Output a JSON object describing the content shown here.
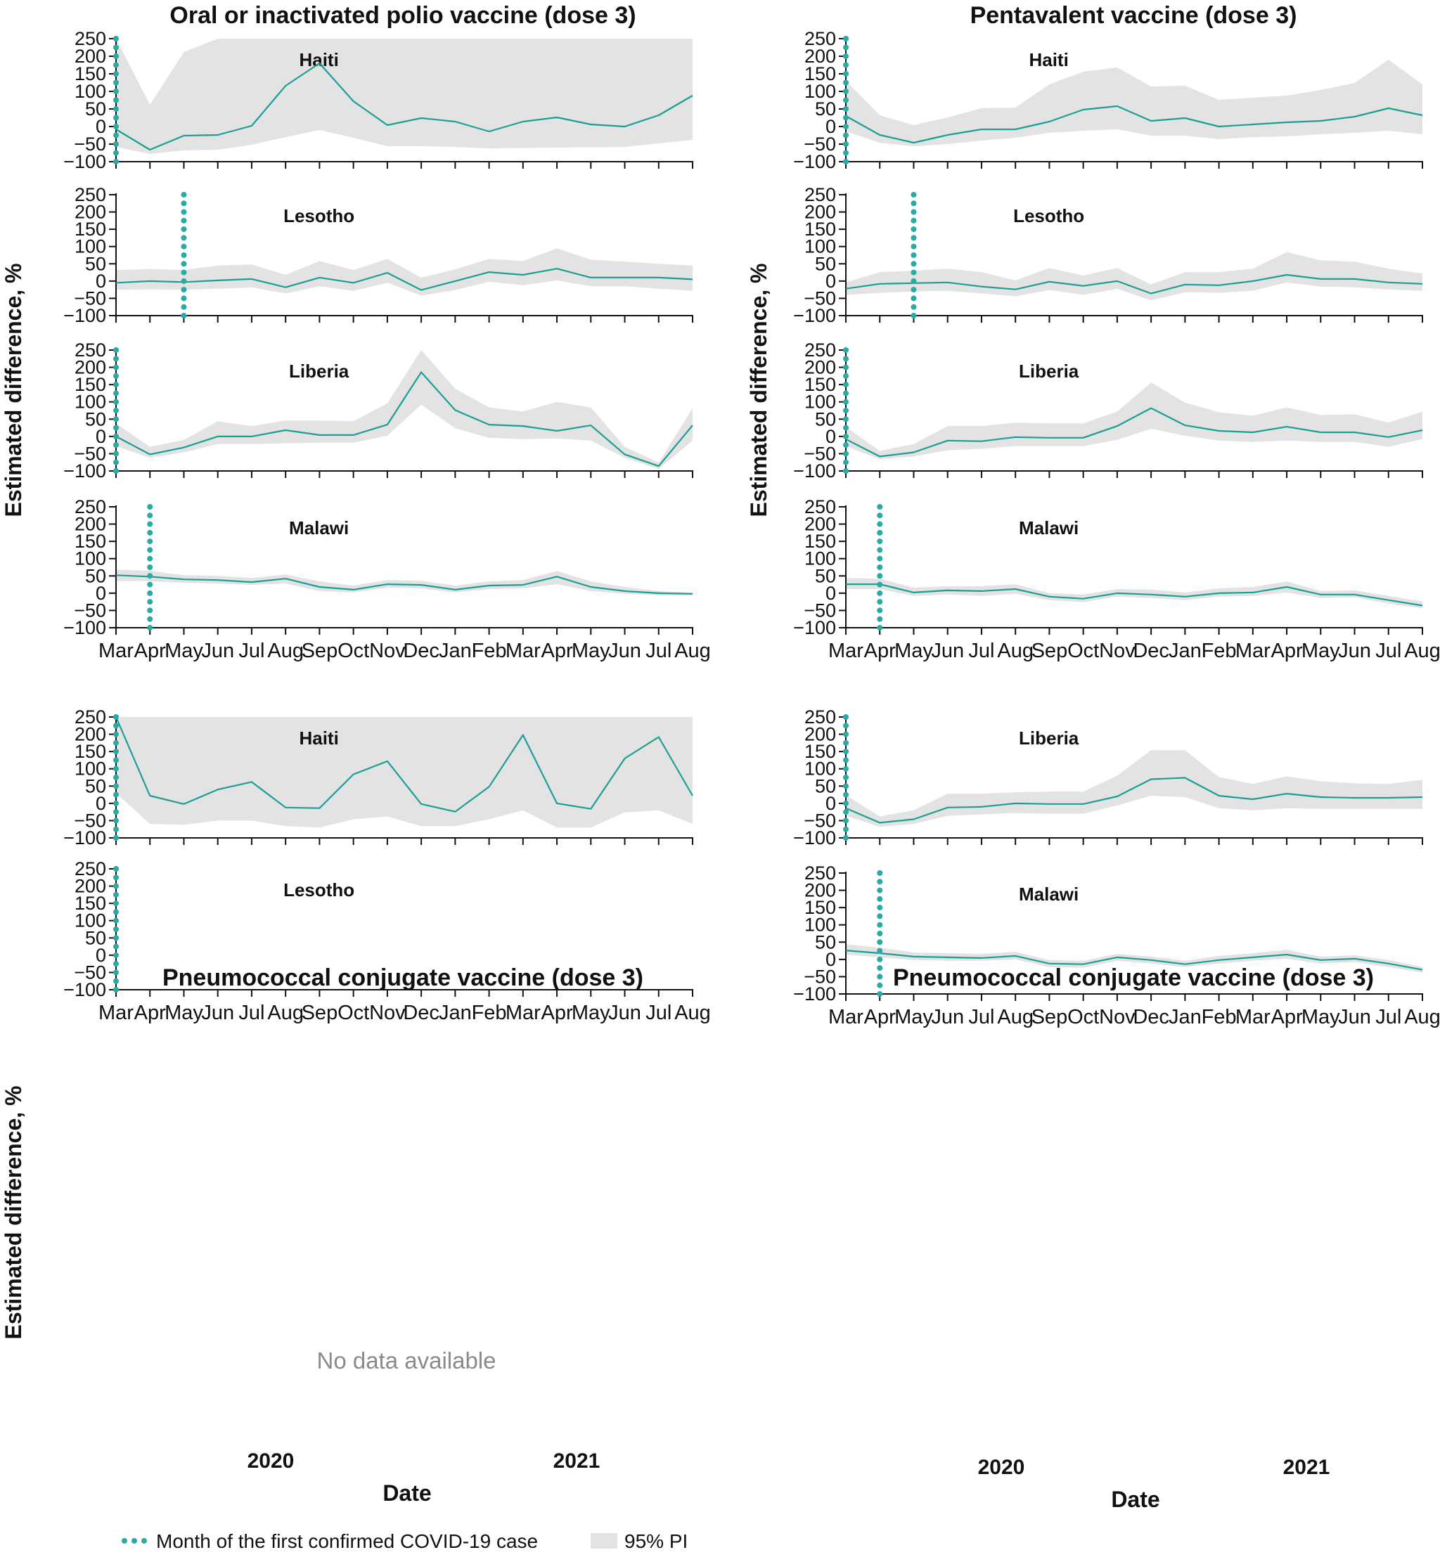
{
  "months": [
    "Mar",
    "Apr",
    "May",
    "Jun",
    "Jul",
    "Aug",
    "Sep",
    "Oct",
    "Nov",
    "Dec",
    "Jan",
    "Feb",
    "Mar",
    "Apr",
    "May",
    "Jun",
    "Jul",
    "Aug"
  ],
  "years": [
    "2020",
    "2021"
  ],
  "x_axis_label": "Date",
  "y_axis_label": "Estimated difference, %",
  "y_ticks": [
    250,
    200,
    150,
    100,
    50,
    0,
    -50,
    -100
  ],
  "no_data_text": "No data available",
  "legend": {
    "covid_line": "Month of the first confirmed COVID-19 case",
    "pi_band": "95% PI"
  },
  "colors": {
    "line": "#1a9e97",
    "marker": "#2aaaa2",
    "band": "#e3e3e3",
    "axis": "#111111"
  },
  "chart_data": [
    {
      "type": "line",
      "title": "Oral or inactivated polio vaccine (dose 3)",
      "country": "Haiti",
      "ylim": [
        -100,
        250
      ],
      "first_case_month_index": 0,
      "series": [
        {
          "name": "Estimated difference",
          "values": [
            -8,
            -66,
            -26,
            -24,
            2,
            116,
            180,
            72,
            4,
            24,
            14,
            -14,
            14,
            26,
            6,
            0,
            32,
            88
          ]
        }
      ],
      "pi_lower": [
        -58,
        -78,
        -68,
        -66,
        -52,
        -30,
        -10,
        -32,
        -56,
        -56,
        -58,
        -62,
        -61,
        -60,
        -59,
        -58,
        -48,
        -38
      ],
      "pi_upper": [
        250,
        62,
        212,
        250,
        250,
        250,
        250,
        250,
        250,
        250,
        250,
        250,
        250,
        250,
        250,
        250,
        250,
        250
      ]
    },
    {
      "type": "line",
      "title": "Oral or inactivated polio vaccine (dose 3)",
      "country": "Lesotho",
      "ylim": [
        -100,
        250
      ],
      "first_case_month_index": 2,
      "series": [
        {
          "name": "Estimated difference",
          "values": [
            -5,
            0,
            -3,
            2,
            6,
            -18,
            10,
            -5,
            24,
            -26,
            0,
            26,
            18,
            36,
            10,
            10,
            10,
            5
          ]
        }
      ],
      "pi_lower": [
        -25,
        -24,
        -25,
        -22,
        -18,
        -36,
        -15,
        -28,
        -5,
        -42,
        -26,
        -2,
        -12,
        2,
        -15,
        -15,
        -22,
        -28
      ],
      "pi_upper": [
        32,
        35,
        32,
        45,
        48,
        18,
        58,
        32,
        64,
        10,
        34,
        64,
        58,
        95,
        62,
        56,
        50,
        45
      ]
    },
    {
      "type": "line",
      "title": "Oral or inactivated polio vaccine (dose 3)",
      "country": "Liberia",
      "ylim": [
        -100,
        250
      ],
      "first_case_month_index": 0,
      "series": [
        {
          "name": "Estimated difference",
          "values": [
            0,
            -52,
            -32,
            0,
            0,
            18,
            4,
            4,
            34,
            186,
            76,
            34,
            30,
            16,
            32,
            -52,
            -86,
            32
          ]
        }
      ],
      "pi_lower": [
        -28,
        -62,
        -46,
        -22,
        -22,
        -20,
        -18,
        -18,
        2,
        92,
        24,
        -4,
        -8,
        -6,
        -12,
        -62,
        -94,
        -12
      ],
      "pi_upper": [
        38,
        -30,
        -10,
        44,
        30,
        46,
        46,
        44,
        96,
        250,
        138,
        84,
        72,
        100,
        84,
        -30,
        -76,
        82
      ]
    },
    {
      "type": "line",
      "title": "Oral or inactivated polio vaccine (dose 3)",
      "country": "Malawi",
      "ylim": [
        -100,
        250
      ],
      "first_case_month_index": 1,
      "series": [
        {
          "name": "Estimated difference",
          "values": [
            52,
            48,
            40,
            38,
            32,
            42,
            18,
            10,
            26,
            24,
            10,
            22,
            24,
            48,
            18,
            6,
            0,
            -2
          ]
        }
      ],
      "pi_lower": [
        35,
        35,
        30,
        28,
        24,
        28,
        6,
        2,
        16,
        14,
        2,
        12,
        14,
        26,
        6,
        -2,
        -6,
        -6
      ],
      "pi_upper": [
        68,
        65,
        52,
        50,
        44,
        54,
        34,
        22,
        38,
        36,
        22,
        34,
        38,
        64,
        34,
        18,
        6,
        2
      ]
    },
    {
      "type": "line",
      "title": "Pentavalent vaccine (dose 3)",
      "country": "Haiti",
      "ylim": [
        -100,
        250
      ],
      "first_case_month_index": 0,
      "series": [
        {
          "name": "Estimated difference",
          "values": [
            30,
            -24,
            -46,
            -24,
            -8,
            -8,
            14,
            48,
            58,
            16,
            24,
            0,
            6,
            12,
            16,
            28,
            52,
            32
          ]
        }
      ],
      "pi_lower": [
        -14,
        -46,
        -56,
        -50,
        -40,
        -32,
        -18,
        -12,
        -8,
        -26,
        -26,
        -36,
        -30,
        -28,
        -22,
        -18,
        -12,
        -22
      ],
      "pi_upper": [
        130,
        32,
        4,
        26,
        52,
        54,
        120,
        156,
        168,
        114,
        116,
        76,
        82,
        88,
        104,
        124,
        190,
        120
      ]
    },
    {
      "type": "line",
      "title": "Pentavalent vaccine (dose 3)",
      "country": "Lesotho",
      "ylim": [
        -100,
        250
      ],
      "first_case_month_index": 2,
      "series": [
        {
          "name": "Estimated difference",
          "values": [
            -22,
            -8,
            -6,
            -4,
            -16,
            -24,
            -2,
            -14,
            0,
            -36,
            -10,
            -12,
            0,
            18,
            6,
            6,
            -4,
            -8
          ]
        }
      ],
      "pi_lower": [
        -40,
        -34,
        -30,
        -28,
        -36,
        -44,
        -26,
        -40,
        -22,
        -56,
        -32,
        -34,
        -28,
        -4,
        -16,
        -18,
        -24,
        -28
      ],
      "pi_upper": [
        -4,
        26,
        30,
        36,
        26,
        2,
        38,
        16,
        38,
        -10,
        26,
        26,
        36,
        84,
        60,
        56,
        36,
        22
      ]
    },
    {
      "type": "line",
      "title": "Pentavalent vaccine (dose 3)",
      "country": "Liberia",
      "ylim": [
        -100,
        250
      ],
      "first_case_month_index": 0,
      "series": [
        {
          "name": "Estimated difference",
          "values": [
            -8,
            -58,
            -46,
            -12,
            -14,
            -2,
            -4,
            -4,
            30,
            82,
            32,
            16,
            12,
            28,
            12,
            12,
            -2,
            18
          ]
        }
      ],
      "pi_lower": [
        -28,
        -66,
        -58,
        -40,
        -36,
        -28,
        -28,
        -28,
        -10,
        22,
        2,
        -12,
        -16,
        -12,
        -16,
        -16,
        -30,
        -8
      ],
      "pi_upper": [
        28,
        -42,
        -22,
        30,
        30,
        40,
        38,
        38,
        72,
        156,
        98,
        70,
        60,
        84,
        62,
        64,
        40,
        72
      ]
    },
    {
      "type": "line",
      "title": "Pentavalent vaccine (dose 3)",
      "country": "Malawi",
      "ylim": [
        -100,
        250
      ],
      "first_case_month_index": 1,
      "series": [
        {
          "name": "Estimated difference",
          "values": [
            26,
            26,
            2,
            8,
            6,
            12,
            -10,
            -16,
            0,
            -4,
            -10,
            0,
            2,
            18,
            -4,
            -4,
            -20,
            -36
          ]
        }
      ],
      "pi_lower": [
        12,
        12,
        -8,
        -4,
        -8,
        -2,
        -20,
        -26,
        -10,
        -14,
        -20,
        -10,
        -8,
        2,
        -14,
        -12,
        -30,
        -44
      ],
      "pi_upper": [
        44,
        42,
        16,
        20,
        20,
        26,
        0,
        -4,
        12,
        10,
        2,
        14,
        18,
        34,
        6,
        8,
        -8,
        -24
      ]
    },
    {
      "type": "line",
      "title": "Pneumococcal conjugate vaccine (dose 3)",
      "country": "Haiti",
      "ylim": [
        -100,
        250
      ],
      "first_case_month_index": 0,
      "series": [
        {
          "name": "Estimated difference",
          "values": [
            250,
            22,
            -2,
            40,
            62,
            -12,
            -14,
            84,
            122,
            -2,
            -24,
            48,
            198,
            0,
            -16,
            130,
            192,
            22
          ]
        }
      ],
      "pi_lower": [
        30,
        -60,
        -62,
        -50,
        -50,
        -66,
        -70,
        -46,
        -38,
        -66,
        -66,
        -46,
        -20,
        -70,
        -70,
        -26,
        -20,
        -60
      ],
      "pi_upper": [
        250,
        250,
        250,
        250,
        250,
        250,
        250,
        250,
        250,
        250,
        250,
        250,
        250,
        250,
        250,
        250,
        250,
        250
      ]
    },
    {
      "type": "line",
      "title": "Pneumococcal conjugate vaccine (dose 3)",
      "country": "Lesotho",
      "ylim": [
        -100,
        250
      ],
      "first_case_month_index": 0,
      "series": [],
      "pi_lower": [],
      "pi_upper": []
    },
    {
      "type": "line",
      "title": "Pneumococcal conjugate vaccine (dose 3)",
      "country": "Liberia",
      "ylim": [
        -100,
        250
      ],
      "first_case_month_index": 0,
      "series": [
        {
          "name": "Estimated difference",
          "values": [
            -14,
            -56,
            -46,
            -12,
            -10,
            0,
            -2,
            -2,
            20,
            70,
            74,
            22,
            12,
            28,
            18,
            16,
            16,
            18
          ]
        }
      ],
      "pi_lower": [
        -36,
        -68,
        -60,
        -36,
        -32,
        -28,
        -30,
        -30,
        -6,
        22,
        18,
        -14,
        -20,
        -14,
        -16,
        -16,
        -16,
        -16
      ],
      "pi_upper": [
        24,
        -38,
        -20,
        28,
        28,
        32,
        34,
        34,
        80,
        154,
        154,
        76,
        56,
        78,
        64,
        58,
        56,
        68
      ]
    },
    {
      "type": "line",
      "title": "Pneumococcal conjugate vaccine (dose 3)",
      "country": "Malawi",
      "ylim": [
        -100,
        250
      ],
      "first_case_month_index": 1,
      "series": [
        {
          "name": "Estimated difference",
          "values": [
            26,
            18,
            8,
            6,
            4,
            10,
            -12,
            -14,
            6,
            -2,
            -14,
            -2,
            6,
            14,
            -2,
            2,
            -12,
            -30
          ]
        }
      ],
      "pi_lower": [
        14,
        6,
        -2,
        -4,
        -4,
        0,
        -22,
        -24,
        -4,
        -12,
        -22,
        -12,
        -4,
        2,
        -12,
        -8,
        -22,
        -38
      ],
      "pi_upper": [
        44,
        34,
        20,
        18,
        16,
        22,
        -2,
        -4,
        16,
        8,
        -4,
        10,
        18,
        28,
        8,
        12,
        -2,
        -22
      ]
    }
  ]
}
